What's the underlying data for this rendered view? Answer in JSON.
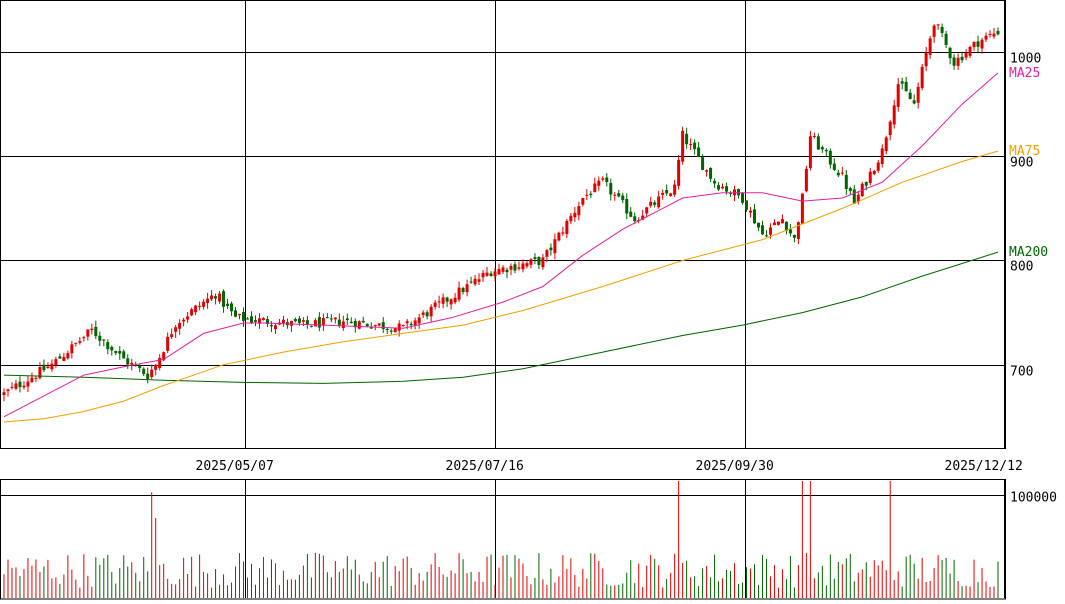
{
  "chart_data": {
    "type": "candlestick",
    "x_labels": [
      "2025/05/07",
      "2025/07/16",
      "2025/09/30",
      "2025/12/12"
    ],
    "y_ticks": [
      700,
      800,
      900,
      1000
    ],
    "ylim": [
      620,
      1050
    ],
    "volume_ticks": [
      100000
    ],
    "volume_ylim": [
      0,
      115000
    ],
    "legend": [
      {
        "name": "MA25",
        "color": "#e020a0"
      },
      {
        "name": "MA75",
        "color": "#f0a000"
      },
      {
        "name": "MA200",
        "color": "#006400"
      }
    ],
    "colors": {
      "up": "#e00000",
      "down": "#006400",
      "grid": "#000000"
    },
    "anchors": [
      {
        "i": 0,
        "p": 672
      },
      {
        "i": 12,
        "p": 700
      },
      {
        "i": 22,
        "p": 733
      },
      {
        "i": 30,
        "p": 705
      },
      {
        "i": 36,
        "p": 690
      },
      {
        "i": 38,
        "p": 700
      },
      {
        "i": 43,
        "p": 740
      },
      {
        "i": 53,
        "p": 768
      },
      {
        "i": 58,
        "p": 745
      },
      {
        "i": 65,
        "p": 742
      },
      {
        "i": 75,
        "p": 738
      },
      {
        "i": 85,
        "p": 742
      },
      {
        "i": 100,
        "p": 735
      },
      {
        "i": 112,
        "p": 765
      },
      {
        "i": 122,
        "p": 790
      },
      {
        "i": 135,
        "p": 800
      },
      {
        "i": 145,
        "p": 860
      },
      {
        "i": 150,
        "p": 875
      },
      {
        "i": 158,
        "p": 840
      },
      {
        "i": 168,
        "p": 870
      },
      {
        "i": 170,
        "p": 920
      },
      {
        "i": 178,
        "p": 875
      },
      {
        "i": 185,
        "p": 860
      },
      {
        "i": 190,
        "p": 825
      },
      {
        "i": 195,
        "p": 840
      },
      {
        "i": 198,
        "p": 820
      },
      {
        "i": 200,
        "p": 860
      },
      {
        "i": 202,
        "p": 920
      },
      {
        "i": 210,
        "p": 880
      },
      {
        "i": 213,
        "p": 855
      },
      {
        "i": 220,
        "p": 905
      },
      {
        "i": 224,
        "p": 970
      },
      {
        "i": 228,
        "p": 950
      },
      {
        "i": 233,
        "p": 1030
      },
      {
        "i": 238,
        "p": 990
      },
      {
        "i": 244,
        "p": 1010
      },
      {
        "i": 249,
        "p": 1020
      }
    ],
    "ma25_points": [
      [
        0,
        650
      ],
      [
        10,
        670
      ],
      [
        20,
        690
      ],
      [
        30,
        698
      ],
      [
        40,
        705
      ],
      [
        50,
        730
      ],
      [
        60,
        740
      ],
      [
        65,
        740
      ],
      [
        80,
        738
      ],
      [
        100,
        735
      ],
      [
        112,
        745
      ],
      [
        125,
        760
      ],
      [
        135,
        775
      ],
      [
        145,
        805
      ],
      [
        155,
        830
      ],
      [
        165,
        850
      ],
      [
        170,
        860
      ],
      [
        180,
        865
      ],
      [
        190,
        865
      ],
      [
        200,
        857
      ],
      [
        210,
        860
      ],
      [
        220,
        875
      ],
      [
        230,
        910
      ],
      [
        240,
        950
      ],
      [
        249,
        980
      ]
    ],
    "ma75_points": [
      [
        0,
        645
      ],
      [
        10,
        648
      ],
      [
        20,
        655
      ],
      [
        30,
        665
      ],
      [
        40,
        680
      ],
      [
        55,
        700
      ],
      [
        70,
        712
      ],
      [
        85,
        722
      ],
      [
        100,
        730
      ],
      [
        115,
        738
      ],
      [
        130,
        752
      ],
      [
        150,
        775
      ],
      [
        170,
        800
      ],
      [
        190,
        820
      ],
      [
        210,
        850
      ],
      [
        225,
        875
      ],
      [
        240,
        895
      ],
      [
        249,
        905
      ]
    ],
    "ma200_points": [
      [
        0,
        690
      ],
      [
        20,
        688
      ],
      [
        40,
        685
      ],
      [
        60,
        683
      ],
      [
        80,
        682
      ],
      [
        100,
        684
      ],
      [
        115,
        688
      ],
      [
        130,
        696
      ],
      [
        150,
        712
      ],
      [
        170,
        728
      ],
      [
        185,
        738
      ],
      [
        200,
        750
      ],
      [
        215,
        765
      ],
      [
        230,
        785
      ],
      [
        249,
        808
      ]
    ],
    "volume_spikes": [
      [
        37,
        103000
      ],
      [
        38,
        78000
      ],
      [
        169,
        128000
      ],
      [
        200,
        178000
      ],
      [
        202,
        150000
      ],
      [
        222,
        128000
      ]
    ]
  }
}
